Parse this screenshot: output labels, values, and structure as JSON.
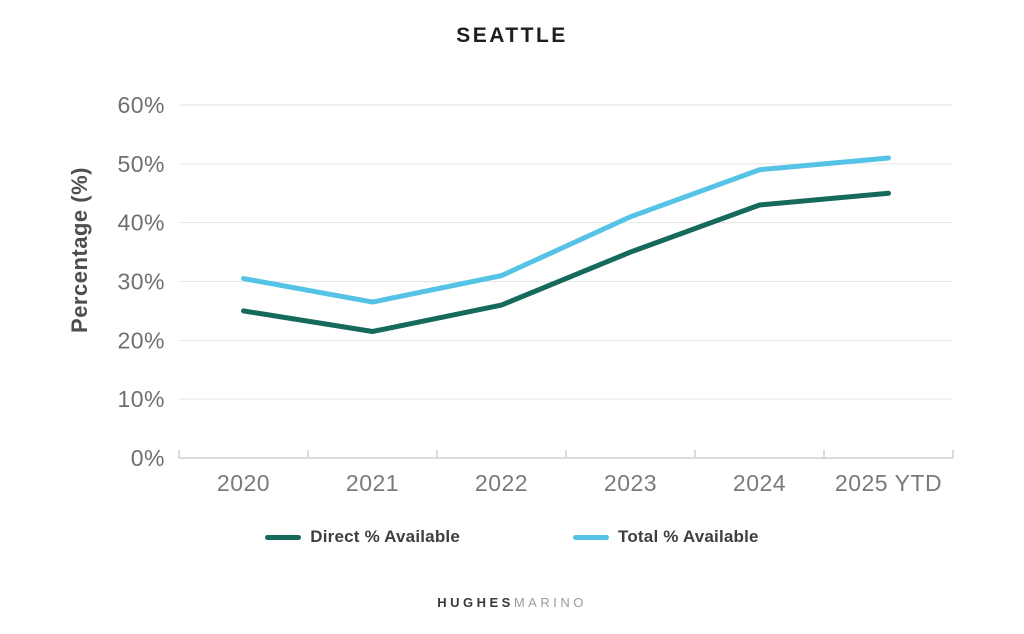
{
  "title": "SEATTLE",
  "chart_data": {
    "type": "line",
    "title": "SEATTLE",
    "categories": [
      "2020",
      "2021",
      "2022",
      "2023",
      "2024",
      "2025 YTD"
    ],
    "series": [
      {
        "name": "Direct % Available",
        "color": "#166A5B",
        "values": [
          25,
          21.5,
          26,
          35,
          43,
          45
        ]
      },
      {
        "name": "Total % Available",
        "color": "#55C3E6",
        "values": [
          30.5,
          26.5,
          31,
          41,
          49,
          51
        ]
      }
    ],
    "xlabel": "",
    "ylabel": "Percentage (%)",
    "ylim": [
      0,
      60
    ],
    "yticks": [
      0,
      10,
      20,
      30,
      40,
      50,
      60
    ],
    "ytick_suffix": "%",
    "grid": true,
    "legend_position": "bottom",
    "colors": {
      "gridline": "#e6e6e6",
      "axis_line": "#dbdbdb",
      "tick_label": "#7a7a7a",
      "y_tick_label": "#6f6f6f",
      "title_text": "#1e1e1e",
      "axis_title_text": "#4e4e4e"
    }
  },
  "footer": {
    "brand_primary": "HUGHES",
    "brand_secondary": "MARINO"
  }
}
